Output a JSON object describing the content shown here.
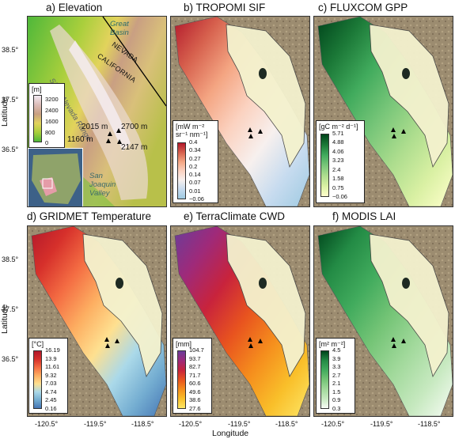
{
  "panels": {
    "a": {
      "title": "a) Elevation",
      "legend_unit": "[m]",
      "legend_ticks": [
        "3200",
        "2400",
        "1600",
        "800",
        "0"
      ],
      "colors": [
        "#f2eaf2",
        "#dcbcb8",
        "#c99f82",
        "#e2d35c",
        "#a9cf3c",
        "#4fb83a"
      ],
      "labels": {
        "great_basin_1": "Great",
        "great_basin_2": "Basin",
        "nevada": "NEVADA",
        "california": "CALIFORNIA",
        "sierra": "Sierra Nevada Range",
        "san_joaquin_1": "San",
        "san_joaquin_2": "Joaquin",
        "san_joaquin_3": "Valley",
        "site_2015": "2015 m",
        "site_2700": "2700 m",
        "site_1160": "1160 m",
        "site_2147": "2147 m"
      }
    },
    "b": {
      "title": "b) TROPOMI SIF",
      "legend_unit_1": "[mW m⁻²",
      "legend_unit_2": "sr⁻¹ nm⁻¹]",
      "legend_ticks": [
        "0.4",
        "0.34",
        "0.27",
        "0.2",
        "0.14",
        "0.07",
        "0.01",
        "−0.06"
      ],
      "colors": [
        "#b2182b",
        "#d6604d",
        "#f4a582",
        "#fbd2c0",
        "#f7f0ee",
        "#c6dbef",
        "#9ecae1"
      ]
    },
    "c": {
      "title": "c) FLUXCOM GPP",
      "legend_unit": "[gC m⁻² d⁻¹]",
      "legend_ticks": [
        "5.71",
        "4.88",
        "4.06",
        "3.23",
        "2.4",
        "1.58",
        "0.75",
        "−0.06"
      ],
      "colors": [
        "#00441b",
        "#1b7837",
        "#41ab5d",
        "#78c679",
        "#addd8e",
        "#d9f0a3",
        "#ffffcc"
      ]
    },
    "d": {
      "title": "d) GRIDMET Temperature",
      "legend_unit": "[°C]",
      "legend_ticks": [
        "16.19",
        "13.9",
        "11.61",
        "9.32",
        "7.03",
        "4.74",
        "2.45",
        "0.16"
      ],
      "colors": [
        "#b2182b",
        "#d6302b",
        "#f46d43",
        "#fdae61",
        "#fee090",
        "#abd9e9",
        "#74add1",
        "#4575b4"
      ]
    },
    "e": {
      "title": "e) TerraClimate CWD",
      "legend_unit": "[mm]",
      "legend_ticks": [
        "104.7",
        "93.7",
        "82.7",
        "71.7",
        "60.6",
        "49.6",
        "38.6",
        "27.6"
      ],
      "colors": [
        "#6a3d9a",
        "#9e2a7a",
        "#c8233c",
        "#e8531f",
        "#f58d1d",
        "#f9bf2a",
        "#fde767"
      ]
    },
    "f": {
      "title": "f) MODIS LAI",
      "legend_unit": "[m² m⁻²]",
      "legend_ticks": [
        "4.5",
        "3.9",
        "3.3",
        "2.7",
        "2.1",
        "1.5",
        "0.9",
        "0.3"
      ],
      "colors": [
        "#00441b",
        "#238b45",
        "#41ab5d",
        "#74c476",
        "#a1d99b",
        "#c7e9c0",
        "#f7fcf5"
      ]
    }
  },
  "axes": {
    "latitude_title": "Latitude",
    "longitude_title": "Longitude",
    "lat_ticks": [
      "38.5°",
      "37.5°",
      "36.5°"
    ],
    "lon_ticks": [
      "-120.5°",
      "-119.5°",
      "-118.5°"
    ]
  },
  "colors": {
    "terrain": "#9c8c70",
    "mask_fill": "#f4f2ce",
    "border": "#222222"
  }
}
